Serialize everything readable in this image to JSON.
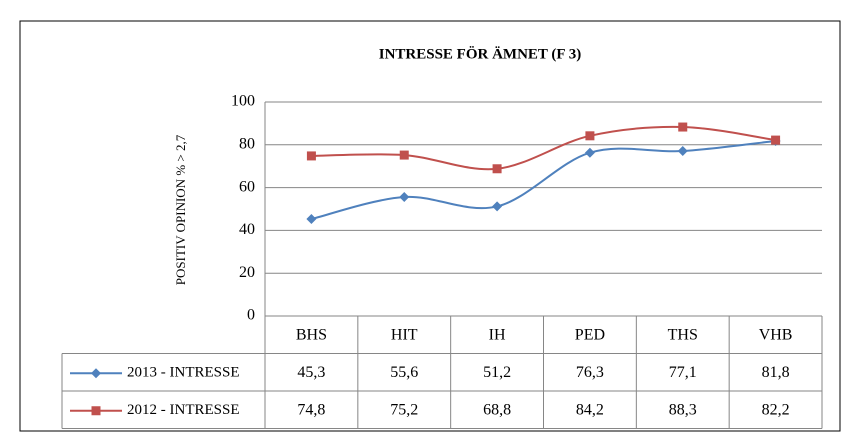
{
  "chart_data": {
    "type": "line",
    "title": "INTRESSE FÖR ÄMNET (F 3)",
    "y_label": "POSITIV OPINION % > 2,7",
    "categories": [
      "BHS",
      "HIT",
      "IH",
      "PED",
      "THS",
      "VHB"
    ],
    "series": [
      {
        "name": "2013 - INTRESSE",
        "color": "#4f81bd",
        "marker": "diamond",
        "values": [
          45.3,
          55.6,
          51.2,
          76.3,
          77.1,
          81.8
        ],
        "value_labels": [
          "45,3",
          "55,6",
          "51,2",
          "76,3",
          "77,1",
          "81,8"
        ]
      },
      {
        "name": "2012 - INTRESSE",
        "color": "#c0504d",
        "marker": "square",
        "values": [
          74.8,
          75.2,
          68.8,
          84.2,
          88.3,
          82.2
        ],
        "value_labels": [
          "74,8",
          "75,2",
          "68,8",
          "84,2",
          "88,3",
          "82,2"
        ]
      }
    ],
    "ylim": [
      0,
      100
    ],
    "yticks": [
      0,
      20,
      40,
      60,
      80,
      100
    ],
    "grid": true,
    "smooth": true,
    "data_table": true
  }
}
